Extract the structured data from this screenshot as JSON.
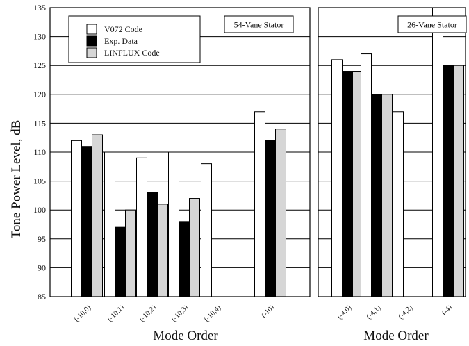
{
  "chart_data": {
    "type": "bar",
    "ylabel": "Tone Power Level, dB",
    "ylim": [
      85,
      135
    ],
    "yticks": [
      85,
      90,
      95,
      100,
      105,
      110,
      115,
      120,
      125,
      130,
      135
    ],
    "grid": "horizontal",
    "legend": {
      "placement": "top-left",
      "entries": [
        "V072 Code",
        "Exp. Data",
        "LINFLUX Code"
      ]
    },
    "colors": {
      "V072 Code": "#ffffff",
      "Exp. Data": "#000000",
      "LINFLUX Code": "#d6d6d6"
    },
    "panels": [
      {
        "label": "54-Vane Stator",
        "xlabel": "Mode Order",
        "categories": [
          "(-10,0)",
          "(-10,1)",
          "(-10,2)",
          "(-10,3)",
          "(-10,4)",
          "(-10)"
        ],
        "series": [
          {
            "name": "V072 Code",
            "values": [
              112,
              110,
              109,
              110,
              108,
              117
            ]
          },
          {
            "name": "Exp. Data",
            "values": [
              111,
              97,
              103,
              98,
              null,
              112
            ]
          },
          {
            "name": "LINFLUX Code",
            "values": [
              113,
              100,
              101,
              102,
              null,
              114
            ]
          }
        ]
      },
      {
        "label": "26-Vane Stator",
        "xlabel": "Mode Order",
        "categories": [
          "(-4,0)",
          "(-4,1)",
          "(-4,2)",
          "(-4)"
        ],
        "series": [
          {
            "name": "V072 Code",
            "values": [
              126,
              127,
              117,
              135
            ]
          },
          {
            "name": "Exp. Data",
            "values": [
              124,
              120,
              null,
              125
            ]
          },
          {
            "name": "LINFLUX Code",
            "values": [
              124,
              120,
              null,
              125
            ]
          }
        ]
      }
    ]
  }
}
